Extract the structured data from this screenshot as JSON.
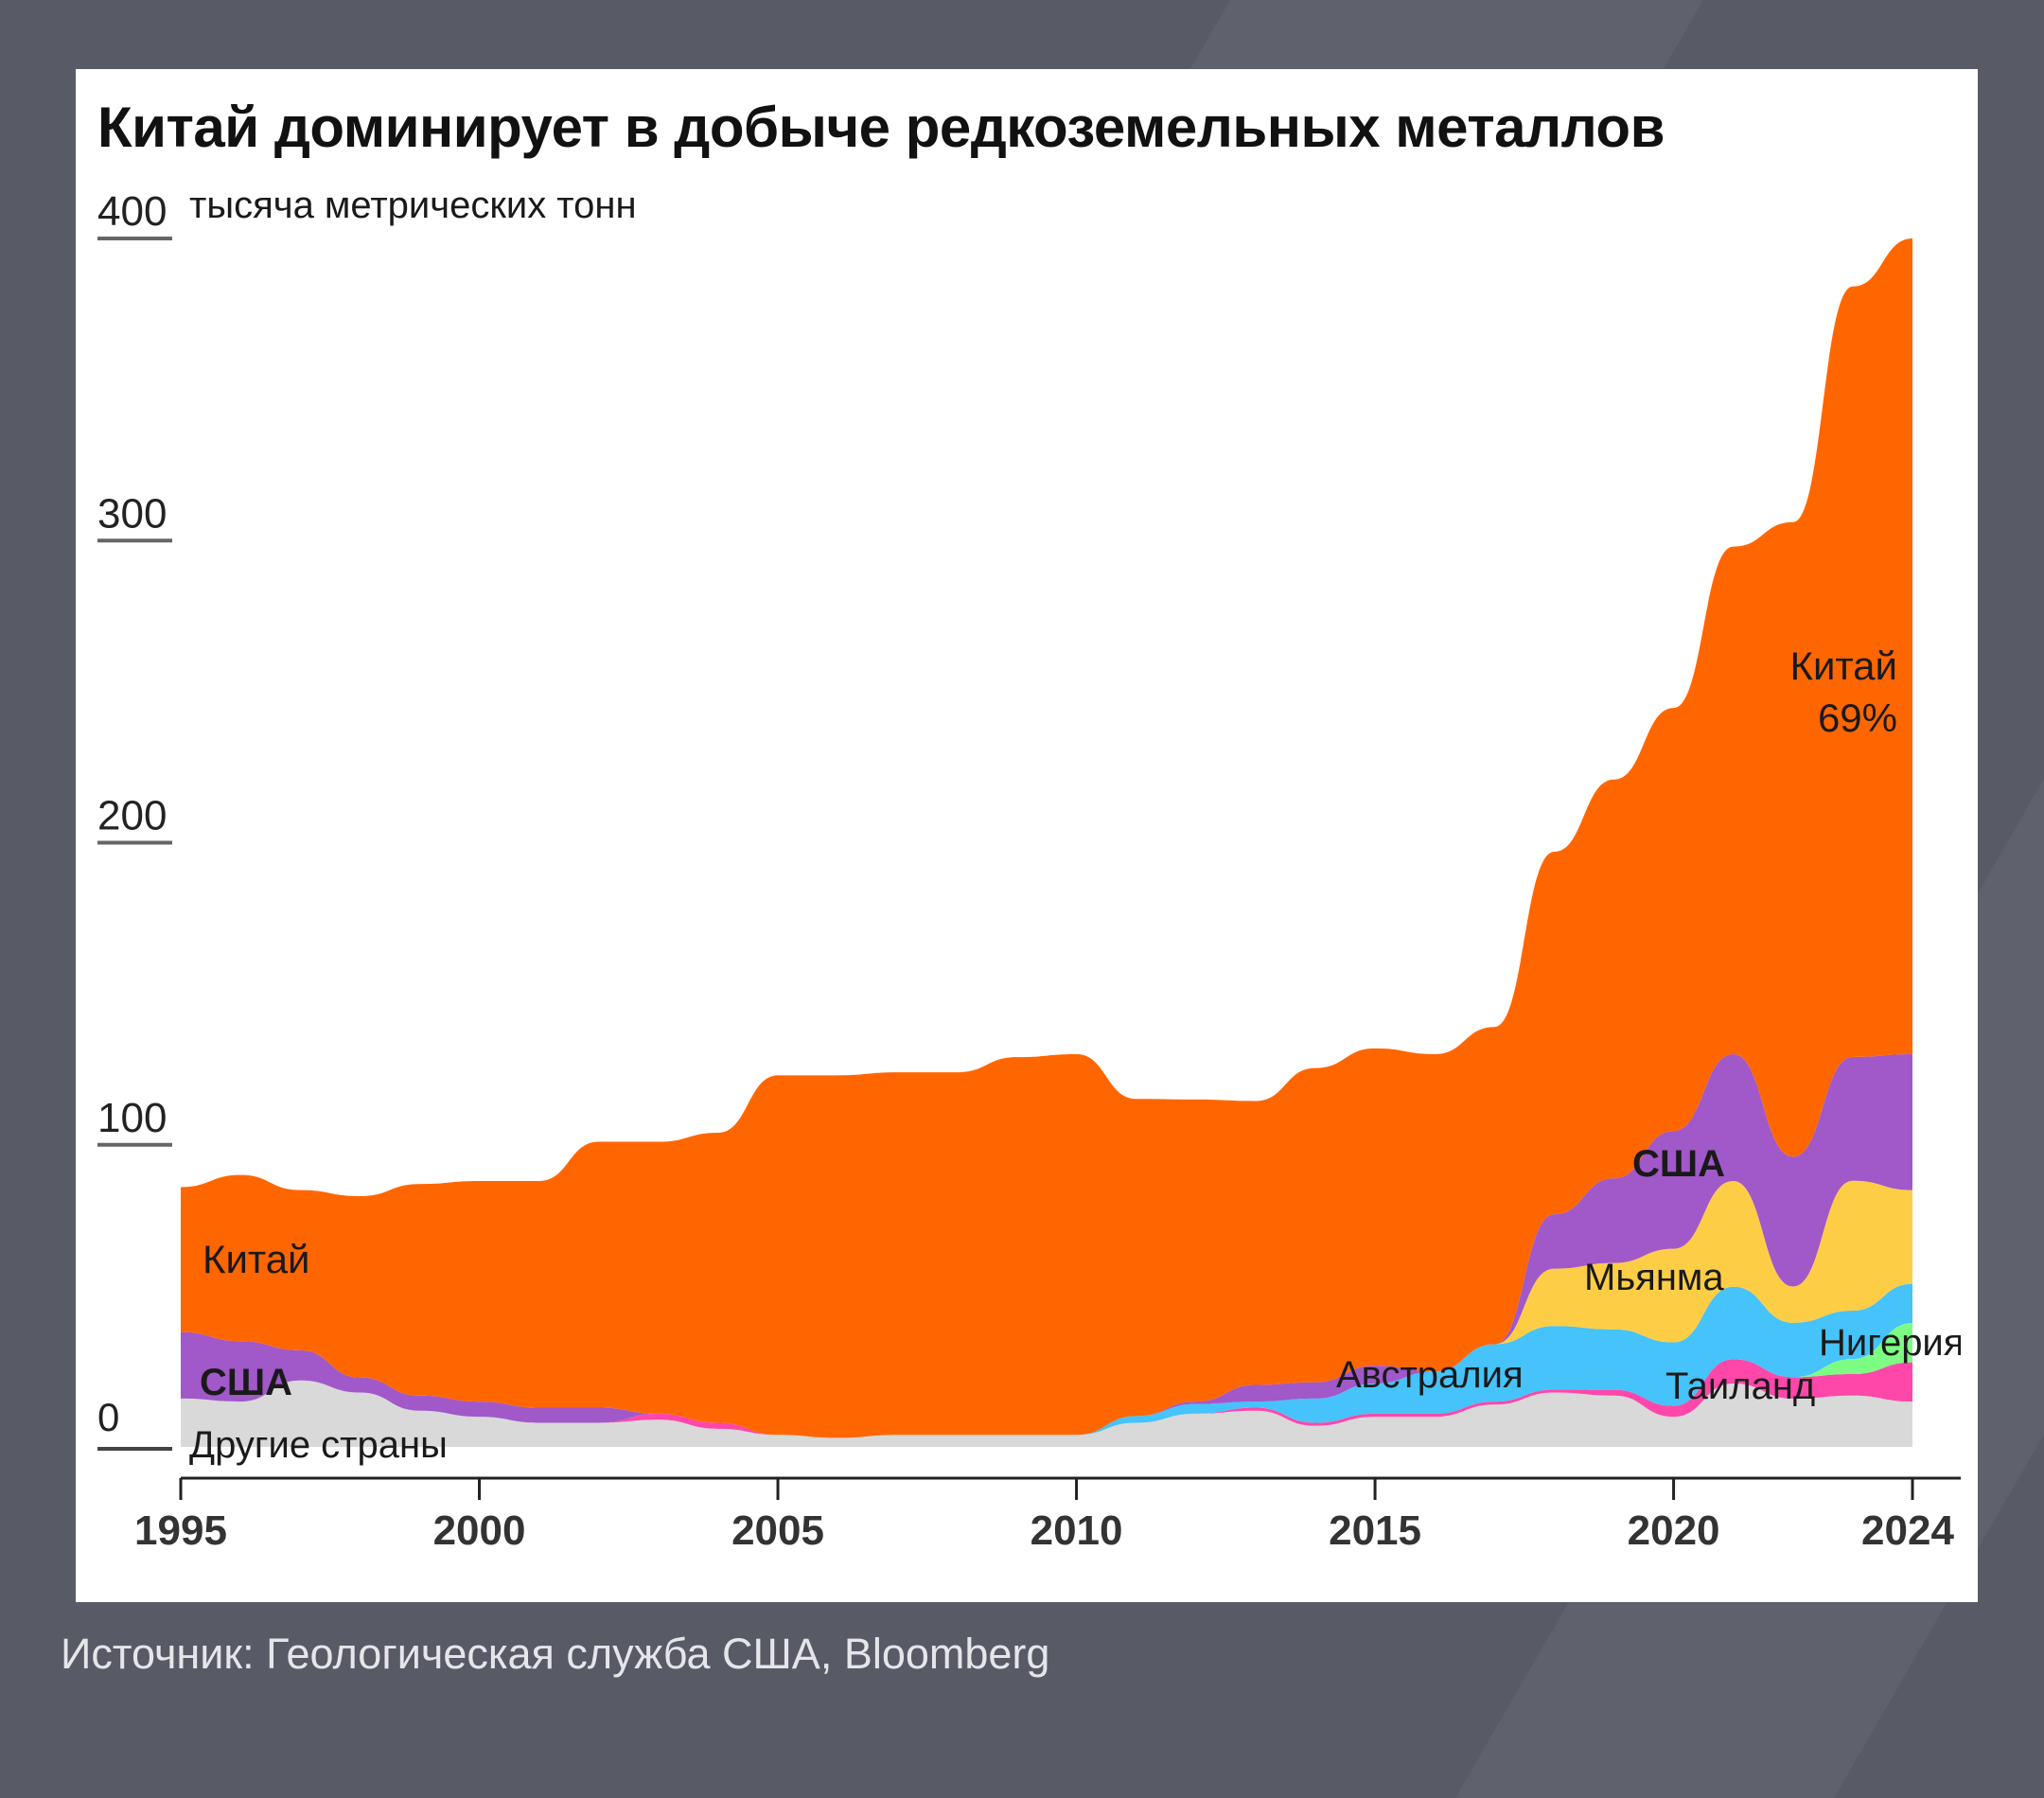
{
  "title": "Китай доминирует в добыче редкоземельных металлов",
  "source": "Источник: Геологическая служба США, Bloomberg",
  "chart_data": {
    "type": "area",
    "stacked": true,
    "title": "Китай доминирует в добыче редкоземельных металлов",
    "ylabel": "тысяча метрических тонн",
    "ylim": [
      0,
      400
    ],
    "yticks": [
      0,
      100,
      200,
      300,
      400
    ],
    "xticks": [
      1995,
      2000,
      2005,
      2010,
      2015,
      2020,
      2024
    ],
    "grid": false,
    "x": [
      1995,
      1996,
      1997,
      1998,
      1999,
      2000,
      2001,
      2002,
      2003,
      2004,
      2005,
      2006,
      2007,
      2008,
      2009,
      2010,
      2011,
      2012,
      2013,
      2014,
      2015,
      2016,
      2017,
      2018,
      2019,
      2020,
      2021,
      2022,
      2023,
      2024
    ],
    "series": [
      {
        "name": "Другие страны",
        "color": "#d9d9d9",
        "values": [
          16,
          15,
          22,
          18,
          12,
          10,
          8,
          8,
          9,
          6,
          4,
          3,
          4,
          4,
          4,
          4,
          8,
          11,
          12,
          7,
          10,
          10,
          14,
          18,
          17,
          10,
          21,
          16,
          17,
          15
        ]
      },
      {
        "name": "Таиланд",
        "color": "#ff47aa",
        "values": [
          0,
          0,
          0,
          0,
          0,
          0,
          0,
          0,
          2,
          2,
          0,
          0,
          0,
          0,
          0,
          0,
          0,
          0,
          1,
          1,
          1,
          1,
          1,
          1,
          1.9,
          3.6,
          8,
          7.1,
          7.1,
          13
        ]
      },
      {
        "name": "Нигерия",
        "color": "#7dfc83",
        "values": [
          0,
          0,
          0,
          0,
          0,
          0,
          0,
          0,
          0,
          0,
          0,
          0,
          0,
          0,
          0,
          0,
          0,
          0,
          0,
          0,
          0,
          0,
          0,
          0,
          0,
          0,
          0,
          0,
          5,
          13
        ]
      },
      {
        "name": "Австралия",
        "color": "#45c3fa",
        "values": [
          0,
          0,
          0,
          0,
          0,
          0,
          0,
          0,
          0,
          0,
          0,
          0,
          0,
          0,
          0,
          0,
          2.2,
          3.2,
          2,
          8,
          10,
          14,
          19,
          21,
          20,
          21,
          24,
          18,
          16,
          13
        ]
      },
      {
        "name": "Мьянма",
        "color": "#fdce45",
        "values": [
          0,
          0,
          0,
          0,
          0,
          0,
          0,
          0,
          0,
          0,
          0,
          0,
          0,
          0,
          0,
          0,
          0,
          0,
          0,
          0,
          0,
          0,
          0,
          19,
          22,
          31,
          35,
          12,
          43,
          31
        ]
      },
      {
        "name": "США",
        "color": "#a158c9",
        "values": [
          22,
          20,
          10,
          5,
          5,
          5,
          5,
          5,
          0,
          0,
          0,
          0,
          0,
          0,
          0,
          0,
          0,
          0.8,
          5.5,
          5.4,
          5.9,
          0,
          0,
          18,
          28,
          39,
          42,
          43,
          41,
          45
        ]
      },
      {
        "name": "Китай",
        "color": "#ff6600",
        "values": [
          48,
          55,
          53,
          60,
          70,
          73,
          75,
          88,
          90,
          96,
          119,
          120,
          120,
          120,
          125,
          126,
          105,
          100,
          94,
          104,
          105,
          105,
          105,
          120,
          132,
          140,
          168,
          210,
          255,
          270
        ]
      }
    ],
    "annotations": {
      "china_share": "69%",
      "labels": [
        "Китай",
        "США",
        "Другие страны",
        "Австралия",
        "США",
        "Мьянма",
        "Таиланд",
        "Нигерия",
        "Китай"
      ]
    }
  }
}
